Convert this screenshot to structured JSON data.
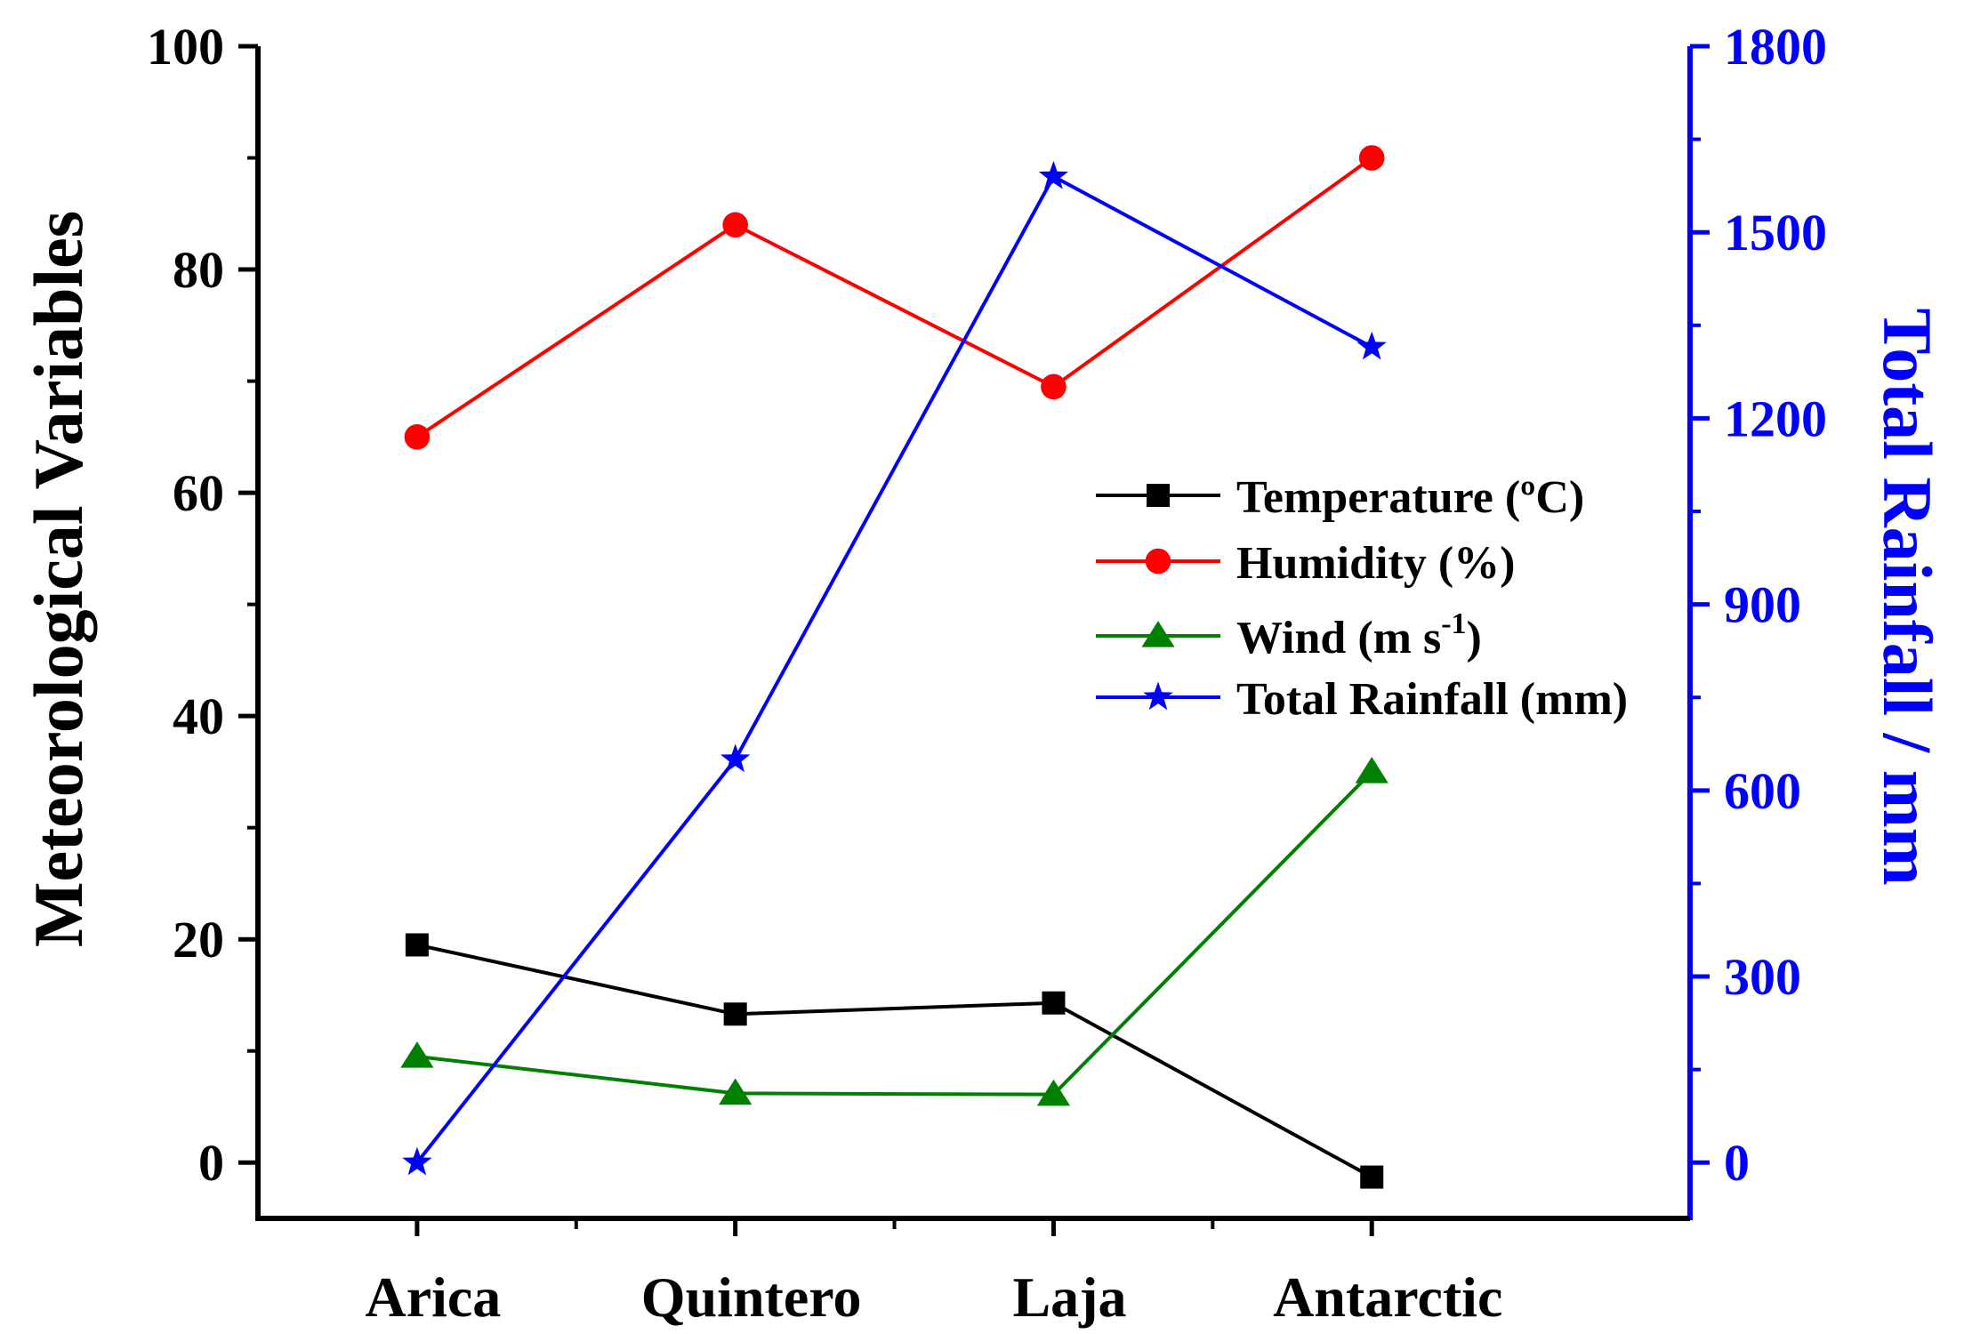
{
  "chart_data": {
    "type": "line",
    "categories": [
      "Arica",
      "Quintero",
      "Laja",
      "Antarctic"
    ],
    "ylabel": "Meteorological Variables",
    "y2label": "Total Rainfall / mm",
    "ylim": [
      -5,
      100
    ],
    "y2lim": [
      -90,
      1800
    ],
    "yticks": [
      0,
      20,
      40,
      60,
      80,
      100
    ],
    "y2ticks": [
      0,
      300,
      600,
      900,
      1200,
      1500,
      1800
    ],
    "legend_position": "center-right",
    "grid": false,
    "series": [
      {
        "name": "Temperature (ºC)",
        "axis": "left",
        "marker": "square",
        "color": "#000000",
        "values": [
          19.5,
          13.3,
          14.3,
          -1.3
        ]
      },
      {
        "name": " Humidity (%)",
        "axis": "left",
        "marker": "circle",
        "color": "#ff0000",
        "values": [
          65,
          84,
          69.5,
          90
        ]
      },
      {
        "name": "Wind (m s-1)",
        "label_main": "Wind (m s",
        "label_sup": "-1",
        "label_tail": ")",
        "axis": "left",
        "marker": "triangle",
        "color": "#008000",
        "values": [
          9.5,
          6.2,
          6.1,
          35
        ]
      },
      {
        "name": "Total Rainfall (mm)",
        "axis": "right",
        "marker": "star",
        "color": "#0000ff",
        "values": [
          0,
          650,
          1590,
          1315
        ]
      }
    ]
  }
}
